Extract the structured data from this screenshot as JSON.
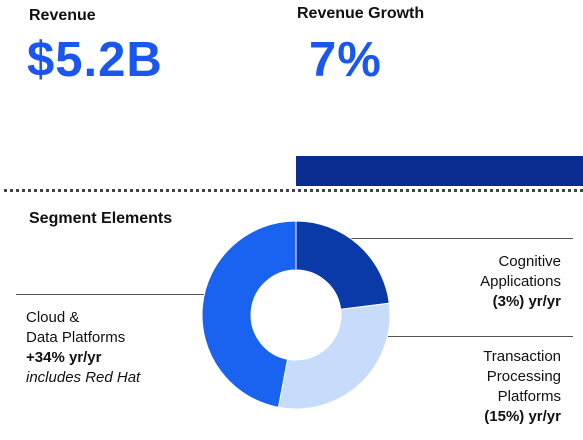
{
  "kpis": {
    "revenue": {
      "label": "Revenue",
      "value": "$5.2B"
    },
    "growth": {
      "label": "Revenue Growth",
      "value": "7%"
    }
  },
  "section": {
    "title": "Segment Elements"
  },
  "segments": [
    {
      "name_lines": [
        "Cognitive",
        "Applications"
      ],
      "change": "(3%) yr/yr",
      "note": "",
      "color": "#0a3aa8"
    },
    {
      "name_lines": [
        "Transaction",
        "Processing",
        "Platforms"
      ],
      "change": "(15%) yr/yr",
      "note": "",
      "color": "#c7dcfb"
    },
    {
      "name_lines": [
        "Cloud &",
        "Data Platforms"
      ],
      "change": "+34% yr/yr",
      "note": "includes Red Hat",
      "color": "#1a62f0"
    }
  ],
  "chart_data": {
    "type": "pie",
    "donut": true,
    "labels": [
      "Cognitive Applications",
      "Transaction Processing Platforms",
      "Cloud & Data Platforms"
    ],
    "values": [
      23,
      30,
      47
    ],
    "colors": [
      "#0a3aa8",
      "#c7dcfb",
      "#1a62f0"
    ]
  }
}
